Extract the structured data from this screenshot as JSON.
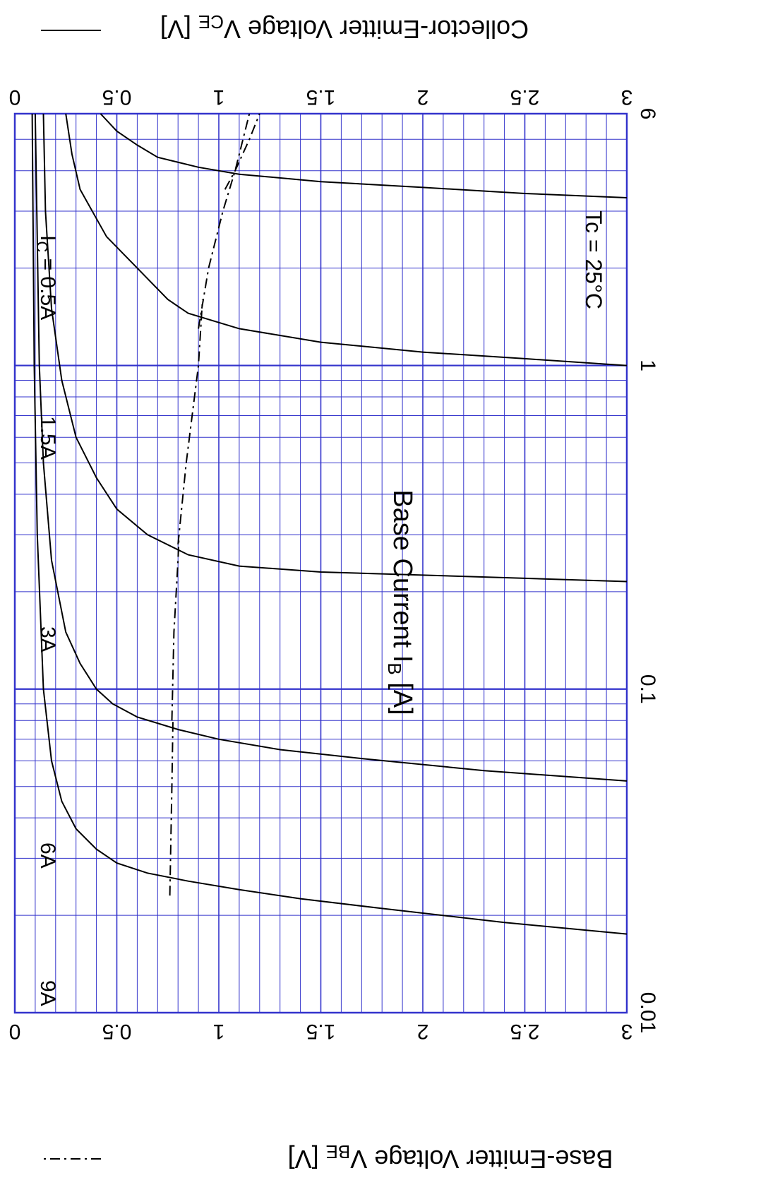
{
  "chart_data": {
    "type": "line",
    "title": "",
    "xlabel": "Base Current  I",
    "xlabel_sub": "B",
    "xlabel_unit": " [A]",
    "xscale": "log",
    "xlim": [
      0.01,
      6
    ],
    "x_ticks": [
      "0.01",
      "0.1",
      "1",
      "6"
    ],
    "ylabel_left": "Collector-Emitter Voltage  V",
    "ylabel_left_sub": "CE",
    "ylabel_left_unit": " [V]",
    "ylabel_right": "Base-Emitter Voltage  V",
    "ylabel_right_sub": "BE",
    "ylabel_right_unit": " [V]",
    "ylim": [
      0,
      3
    ],
    "y_ticks": [
      "0",
      "0.5",
      "1",
      "1.5",
      "2",
      "2.5",
      "3"
    ],
    "grid": true,
    "orientation": "rotated 180 degrees",
    "legend": [
      {
        "name": "Collector-Emitter Voltage VCE [V]",
        "style": "solid"
      },
      {
        "name": "Base-Emitter Voltage VBE [V]",
        "style": "dash-dot"
      }
    ],
    "annotations": {
      "condition": "Tc = 25°C",
      "ic_prefix": "I",
      "ic_sub": "C",
      "ic_first": " = 0.5A",
      "ic_others": [
        "1.5A",
        "3A",
        "6A",
        "9A"
      ]
    },
    "colors": {
      "grid": "#3333cc",
      "curve": "#000000",
      "text": "#000000"
    },
    "series": [
      {
        "name": "IC = 0.5A",
        "axis": "VCE",
        "style": "solid",
        "points": [
          [
            0.0175,
            3.0
          ],
          [
            0.019,
            2.4
          ],
          [
            0.021,
            1.8
          ],
          [
            0.0225,
            1.4
          ],
          [
            0.024,
            1.1
          ],
          [
            0.0255,
            0.85
          ],
          [
            0.027,
            0.65
          ],
          [
            0.029,
            0.5
          ],
          [
            0.032,
            0.4
          ],
          [
            0.037,
            0.3
          ],
          [
            0.045,
            0.23
          ],
          [
            0.06,
            0.18
          ],
          [
            0.1,
            0.14
          ],
          [
            0.3,
            0.11
          ],
          [
            1,
            0.095
          ],
          [
            6,
            0.085
          ]
        ]
      },
      {
        "name": "IC = 1.5A",
        "axis": "VCE",
        "style": "solid",
        "points": [
          [
            0.052,
            3.0
          ],
          [
            0.056,
            2.3
          ],
          [
            0.061,
            1.7
          ],
          [
            0.065,
            1.3
          ],
          [
            0.07,
            1.0
          ],
          [
            0.075,
            0.8
          ],
          [
            0.082,
            0.6
          ],
          [
            0.09,
            0.48
          ],
          [
            0.1,
            0.4
          ],
          [
            0.12,
            0.32
          ],
          [
            0.15,
            0.25
          ],
          [
            0.25,
            0.18
          ],
          [
            0.5,
            0.14
          ],
          [
            1,
            0.12
          ],
          [
            6,
            0.1
          ]
        ]
      },
      {
        "name": "IC = 3A",
        "axis": "VCE",
        "style": "solid",
        "points": [
          [
            0.215,
            3.0
          ],
          [
            0.22,
            2.5
          ],
          [
            0.225,
            2.0
          ],
          [
            0.23,
            1.5
          ],
          [
            0.24,
            1.1
          ],
          [
            0.26,
            0.85
          ],
          [
            0.3,
            0.65
          ],
          [
            0.36,
            0.5
          ],
          [
            0.45,
            0.4
          ],
          [
            0.6,
            0.3
          ],
          [
            0.9,
            0.23
          ],
          [
            1.5,
            0.18
          ],
          [
            3,
            0.15
          ],
          [
            6,
            0.14
          ]
        ]
      },
      {
        "name": "IC = 6A",
        "axis": "VCE",
        "style": "solid",
        "points": [
          [
            1.0,
            3.0
          ],
          [
            1.05,
            2.5
          ],
          [
            1.1,
            2.0
          ],
          [
            1.18,
            1.5
          ],
          [
            1.3,
            1.1
          ],
          [
            1.45,
            0.85
          ],
          [
            1.6,
            0.75
          ],
          [
            2.0,
            0.6
          ],
          [
            2.5,
            0.45
          ],
          [
            3.5,
            0.32
          ],
          [
            4.5,
            0.28
          ],
          [
            6,
            0.25
          ]
        ]
      },
      {
        "name": "IC = 9A",
        "axis": "VCE",
        "style": "solid",
        "points": [
          [
            3.3,
            3.0
          ],
          [
            3.4,
            2.5
          ],
          [
            3.55,
            2.0
          ],
          [
            3.7,
            1.5
          ],
          [
            3.9,
            1.1
          ],
          [
            4.1,
            0.9
          ],
          [
            4.4,
            0.7
          ],
          [
            4.8,
            0.6
          ],
          [
            5.3,
            0.5
          ],
          [
            6,
            0.42
          ]
        ]
      },
      {
        "name": "IC = 0.5A",
        "axis": "VBE",
        "style": "dash-dot",
        "points": [
          [
            0.023,
            0.76
          ],
          [
            0.05,
            0.77
          ],
          [
            0.08,
            0.775
          ]
        ]
      },
      {
        "name": "IC = 1.5A",
        "axis": "VBE",
        "style": "dash-dot",
        "points": [
          [
            0.08,
            0.77
          ],
          [
            0.15,
            0.78
          ],
          [
            0.25,
            0.8
          ],
          [
            0.3,
            0.805
          ]
        ]
      },
      {
        "name": "IC = 3A",
        "axis": "VBE",
        "style": "dash-dot",
        "points": [
          [
            0.28,
            0.8
          ],
          [
            0.5,
            0.84
          ],
          [
            1,
            0.9
          ],
          [
            1.6,
            0.92
          ]
        ]
      },
      {
        "name": "IC = 6A",
        "axis": "VBE",
        "style": "dash-dot",
        "points": [
          [
            1.3,
            0.9
          ],
          [
            2,
            0.95
          ],
          [
            3,
            1.02
          ],
          [
            4,
            1.08
          ],
          [
            6,
            1.15
          ]
        ]
      },
      {
        "name": "IC = 9A",
        "axis": "VBE",
        "style": "dash-dot",
        "points": [
          [
            3.5,
            1.03
          ],
          [
            4,
            1.08
          ],
          [
            5,
            1.15
          ],
          [
            6,
            1.2
          ]
        ]
      }
    ]
  }
}
